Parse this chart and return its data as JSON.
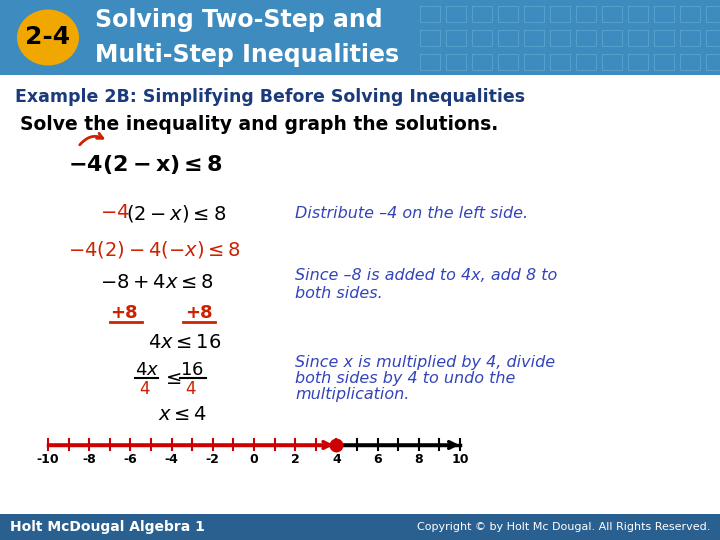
{
  "bg_color": "#ffffff",
  "header_bg": "#3d8bbf",
  "badge_color": "#f0a800",
  "badge_text": "2-4",
  "header_title_line1": "Solving Two-Step and",
  "header_title_line2": "Multi-Step Inequalities",
  "subheader_text": "Example 2B: Simplifying Before Solving Inequalities",
  "subheader_color": "#1a3a7a",
  "solve_text": "Solve the inequality and graph the solutions.",
  "footer_bg": "#2a6090",
  "footer_left": "Holt McDougal Algebra 1",
  "footer_right": "Copyright © by Holt Mc Dougal. All Rights Reserved.",
  "number_line_min": -10,
  "number_line_max": 10,
  "solution_point": 4,
  "arrow_color": "#cc0000",
  "black_color": "#000000",
  "red_color": "#cc2200",
  "blue_color": "#3344bb",
  "dark_blue": "#1a3a7a"
}
